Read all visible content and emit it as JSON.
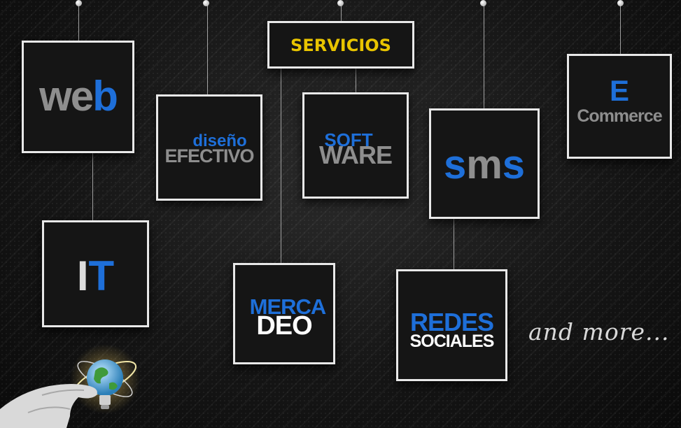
{
  "title": "SERVICIOS",
  "boxes": {
    "web": {
      "part1": "we",
      "part2": "b"
    },
    "diseno": {
      "top": "diseño",
      "bottom": "EFECTIVO"
    },
    "software": {
      "top": "SOFT",
      "bottom": "WARE"
    },
    "sms": {
      "part1": "s",
      "part2": "m",
      "part3": "s"
    },
    "ecommerce": {
      "top": "E",
      "bottom": "Commerce"
    },
    "it": {
      "part1": "I",
      "part2": "T"
    },
    "mercadeo": {
      "top": "MERCA",
      "bottom": "DEO"
    },
    "redes": {
      "top": "REDES",
      "bottom": "SOCIALES"
    }
  },
  "tagline": "and more...",
  "colors": {
    "accent_blue": "#1e6fd9",
    "title_yellow": "#e8c400",
    "text_gray": "#8e8e8e"
  },
  "icons": {
    "graphic": "hand-holding-globe-bulb-icon"
  }
}
